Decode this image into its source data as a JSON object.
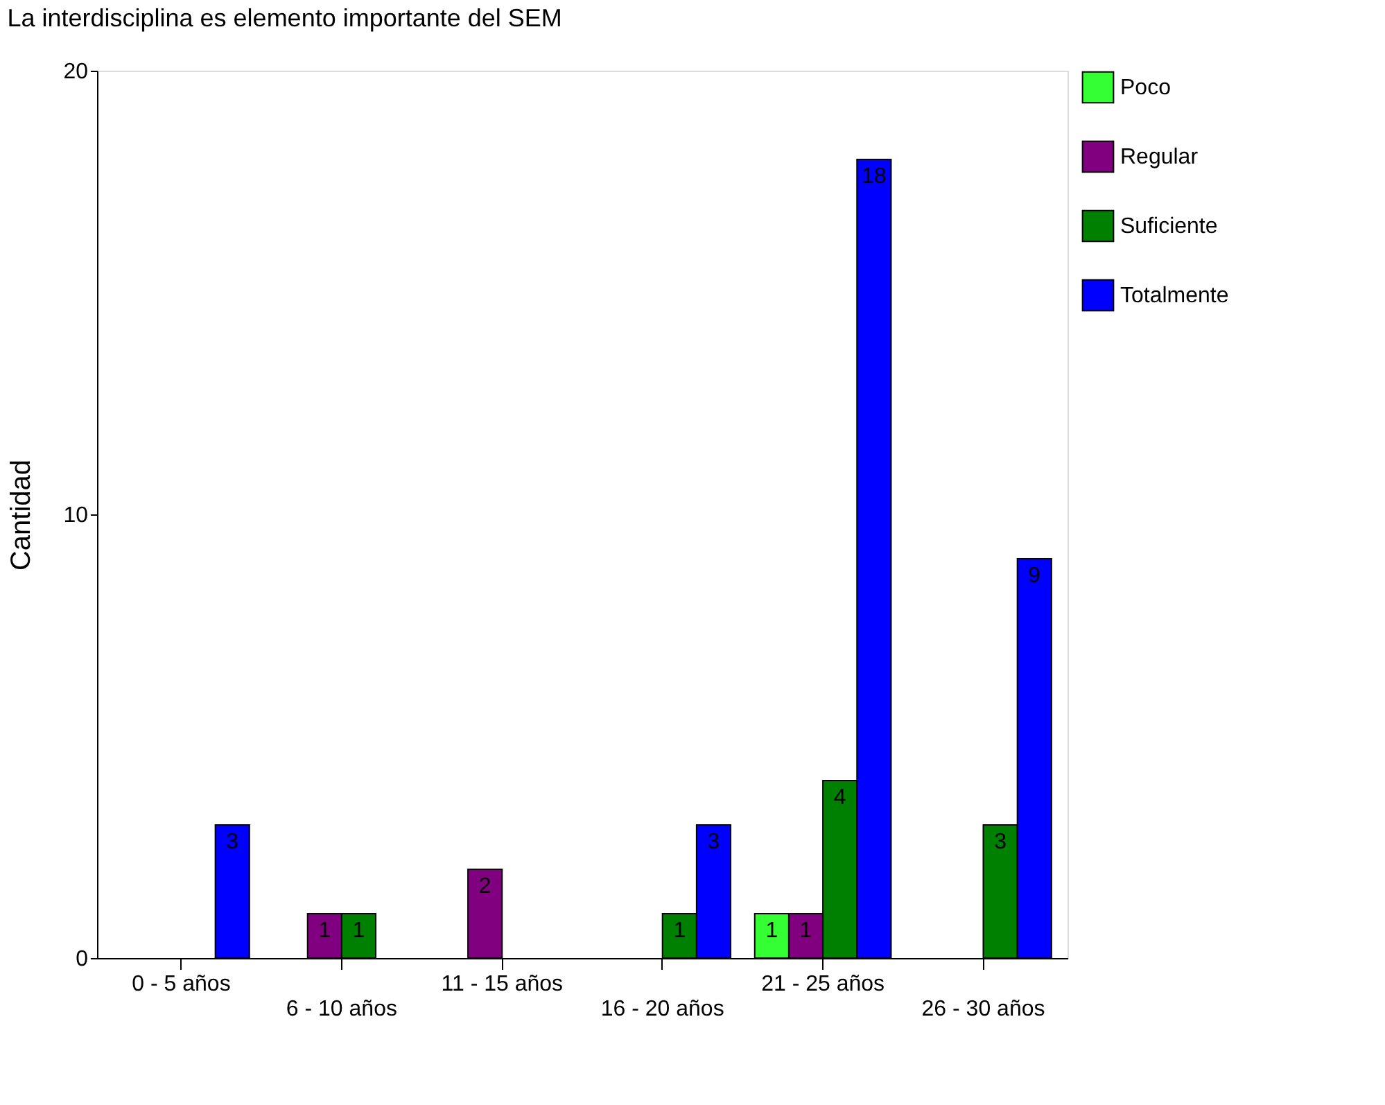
{
  "chart_data": {
    "type": "bar",
    "title": "La interdisciplina es elemento importante del SEM",
    "ylabel": "Cantidad",
    "categories": [
      "0 - 5 años",
      "6 - 10 años",
      "11 - 15 años",
      "16 - 20 años",
      "21 - 25 años",
      "26 - 30 años"
    ],
    "series": [
      {
        "name": "Poco",
        "color": "#33ff33",
        "values": [
          null,
          null,
          null,
          null,
          1,
          null
        ]
      },
      {
        "name": "Regular",
        "color": "#800080",
        "values": [
          null,
          1,
          2,
          null,
          1,
          null
        ]
      },
      {
        "name": "Suficiente",
        "color": "#008000",
        "values": [
          null,
          1,
          null,
          1,
          4,
          3
        ]
      },
      {
        "name": "Totalmente",
        "color": "#0000ff",
        "values": [
          3,
          null,
          null,
          3,
          18,
          9
        ]
      }
    ],
    "ylim": [
      0,
      20
    ],
    "yticks": [
      0,
      10,
      20
    ],
    "grid": false,
    "legend": "right",
    "data_labels": true
  }
}
